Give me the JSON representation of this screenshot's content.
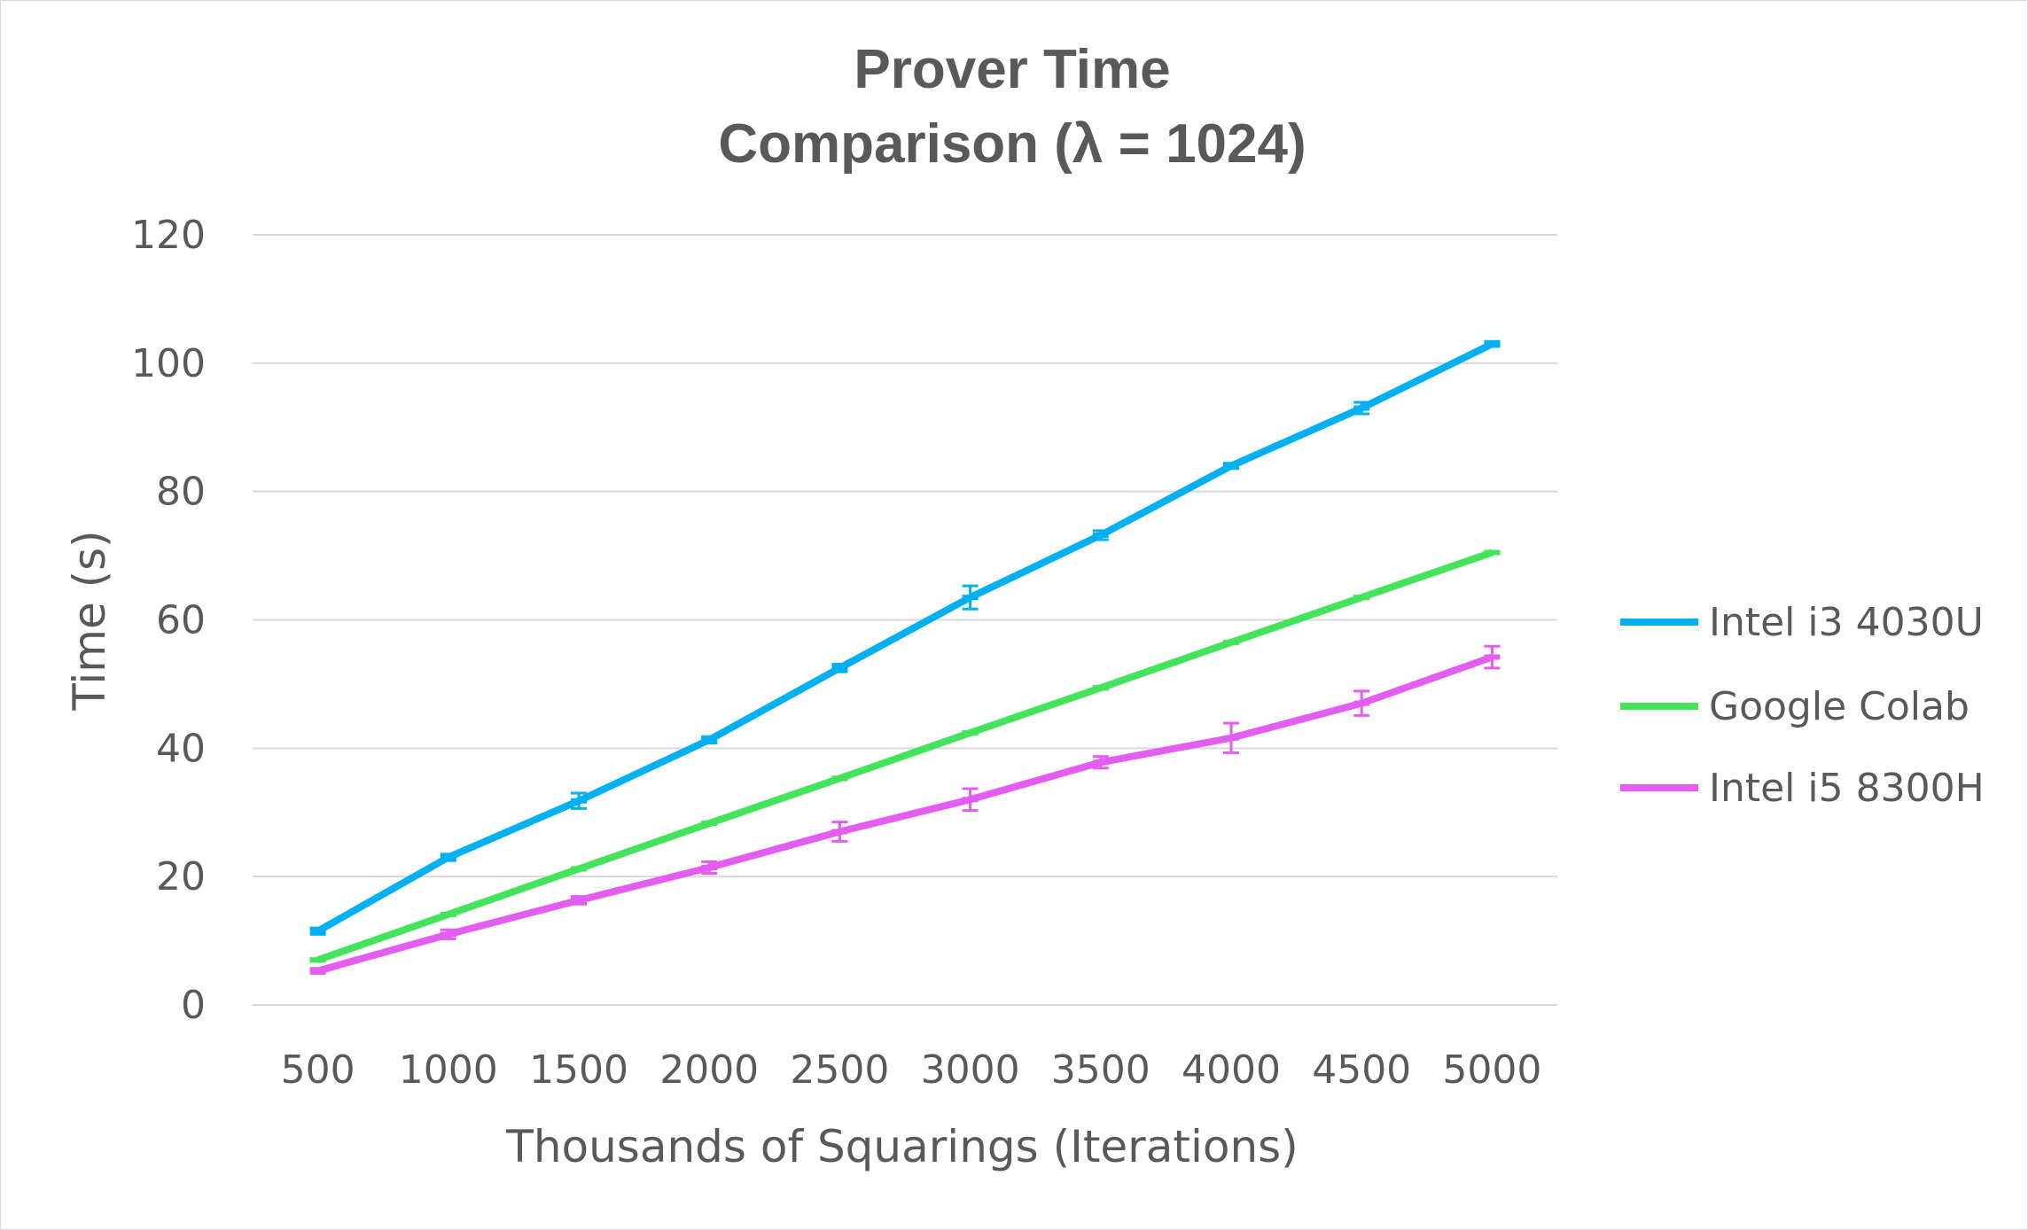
{
  "chart_data": {
    "type": "line",
    "title_lines": [
      "Prover Time",
      "Comparison (λ = 1024)"
    ],
    "xlabel": "Thousands of Squarings (Iterations)",
    "ylabel": "Time (s)",
    "categories": [
      "500",
      "1000",
      "1500",
      "2000",
      "2500",
      "3000",
      "3500",
      "4000",
      "4500",
      "5000"
    ],
    "ylim": [
      0,
      120
    ],
    "yticks": [
      0,
      20,
      40,
      60,
      80,
      100,
      120
    ],
    "grid": true,
    "error_bars": true,
    "legend_position": "right",
    "series": [
      {
        "name": "Intel i3 4030U",
        "color": "#00b0f0",
        "values": [
          11.5,
          23,
          31.8,
          41.3,
          52.5,
          63.5,
          73.2,
          84,
          93,
          103
        ],
        "errors": [
          0.5,
          0.5,
          1.2,
          0.5,
          0.6,
          1.8,
          0.7,
          0.4,
          0.9,
          0.4
        ]
      },
      {
        "name": "Google Colab",
        "color": "#44e35c",
        "values": [
          7,
          14.1,
          21.2,
          28.3,
          35.3,
          42.4,
          49.4,
          56.5,
          63.5,
          70.5
        ],
        "errors": [
          0.2,
          0.2,
          0.2,
          0.2,
          0.2,
          0.2,
          0.2,
          0.2,
          0.2,
          0.2
        ]
      },
      {
        "name": "Intel i5 8300H",
        "color": "#e35ef0",
        "values": [
          5.3,
          11,
          16.3,
          21.4,
          27,
          32,
          37.8,
          41.6,
          47,
          54.2
        ],
        "errors": [
          0.4,
          0.7,
          0.6,
          0.9,
          1.5,
          1.7,
          0.9,
          2.3,
          1.9,
          1.7
        ]
      }
    ]
  }
}
